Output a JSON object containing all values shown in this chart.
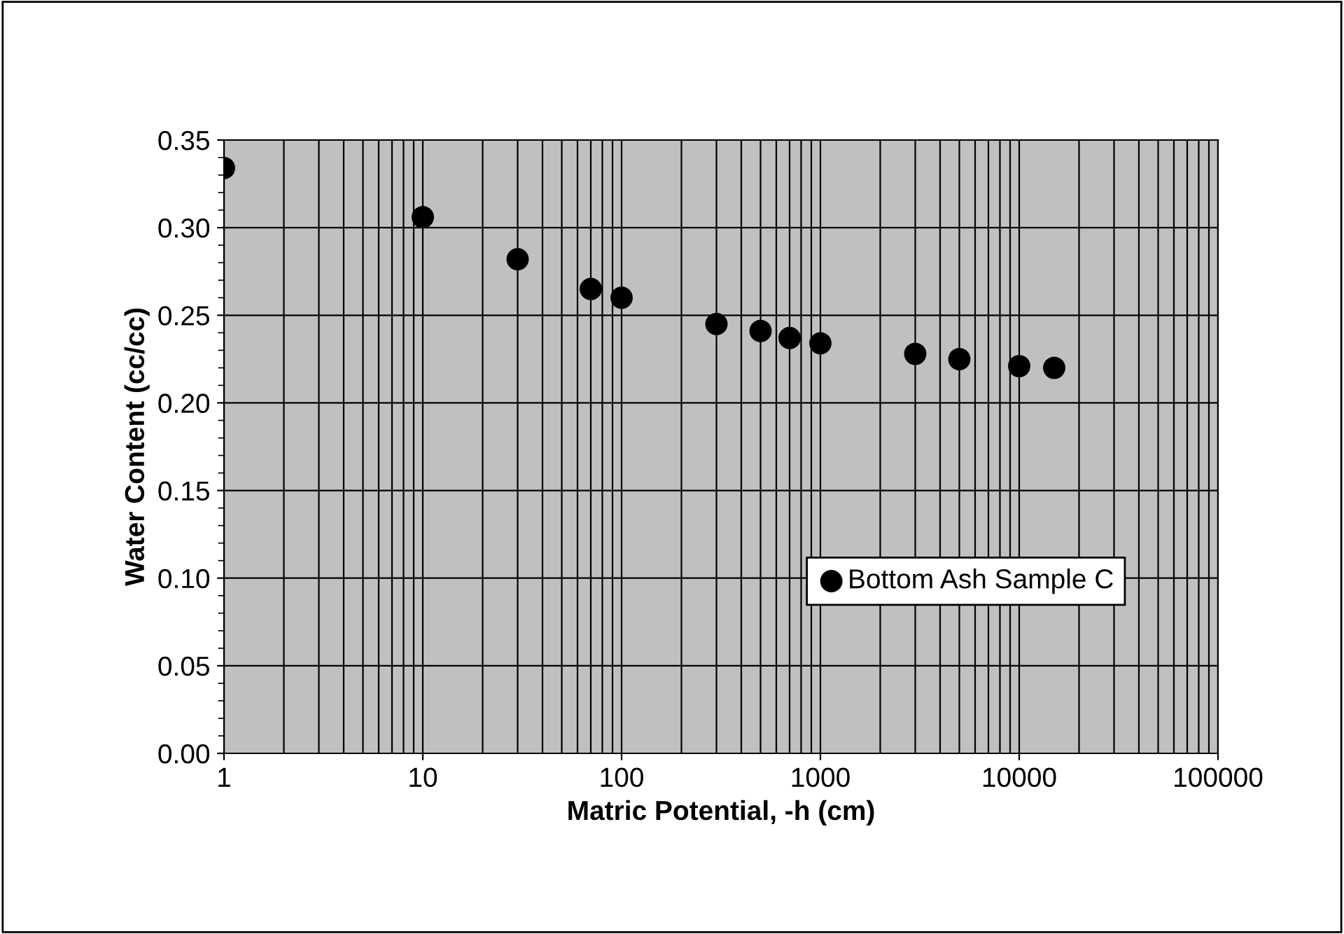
{
  "chart_data": {
    "type": "scatter",
    "xlabel": "Matric Potential, -h (cm)",
    "ylabel": "Water Content (cc/cc)",
    "log": "x",
    "grid": true,
    "legend": "lower right",
    "marker": "circle",
    "xlim": [
      1,
      100000
    ],
    "xticks": [
      1,
      10,
      100,
      1000,
      10000,
      100000
    ],
    "ylim": [
      0,
      0.35
    ],
    "yticks": [
      {
        "value": 0,
        "label": "0.00"
      },
      {
        "value": 0.05,
        "label": "0.05"
      },
      {
        "value": 0.1,
        "label": "0.10"
      },
      {
        "value": 0.15,
        "label": "0.15"
      },
      {
        "value": 0.2,
        "label": "0.20"
      },
      {
        "value": 0.25,
        "label": "0.25"
      },
      {
        "value": 0.3,
        "label": "0.30"
      },
      {
        "value": 0.35,
        "label": "0.35"
      }
    ],
    "series": [
      {
        "name": "Bottom Ash Sample C",
        "color": "#000000",
        "x": [
          1,
          10,
          30,
          70,
          100,
          300,
          500,
          700,
          1000,
          3000,
          5000,
          10000,
          15000
        ],
        "values": [
          0.334,
          0.306,
          0.282,
          0.265,
          0.26,
          0.245,
          0.241,
          0.237,
          0.234,
          0.228,
          0.225,
          0.221,
          0.22
        ]
      }
    ]
  }
}
